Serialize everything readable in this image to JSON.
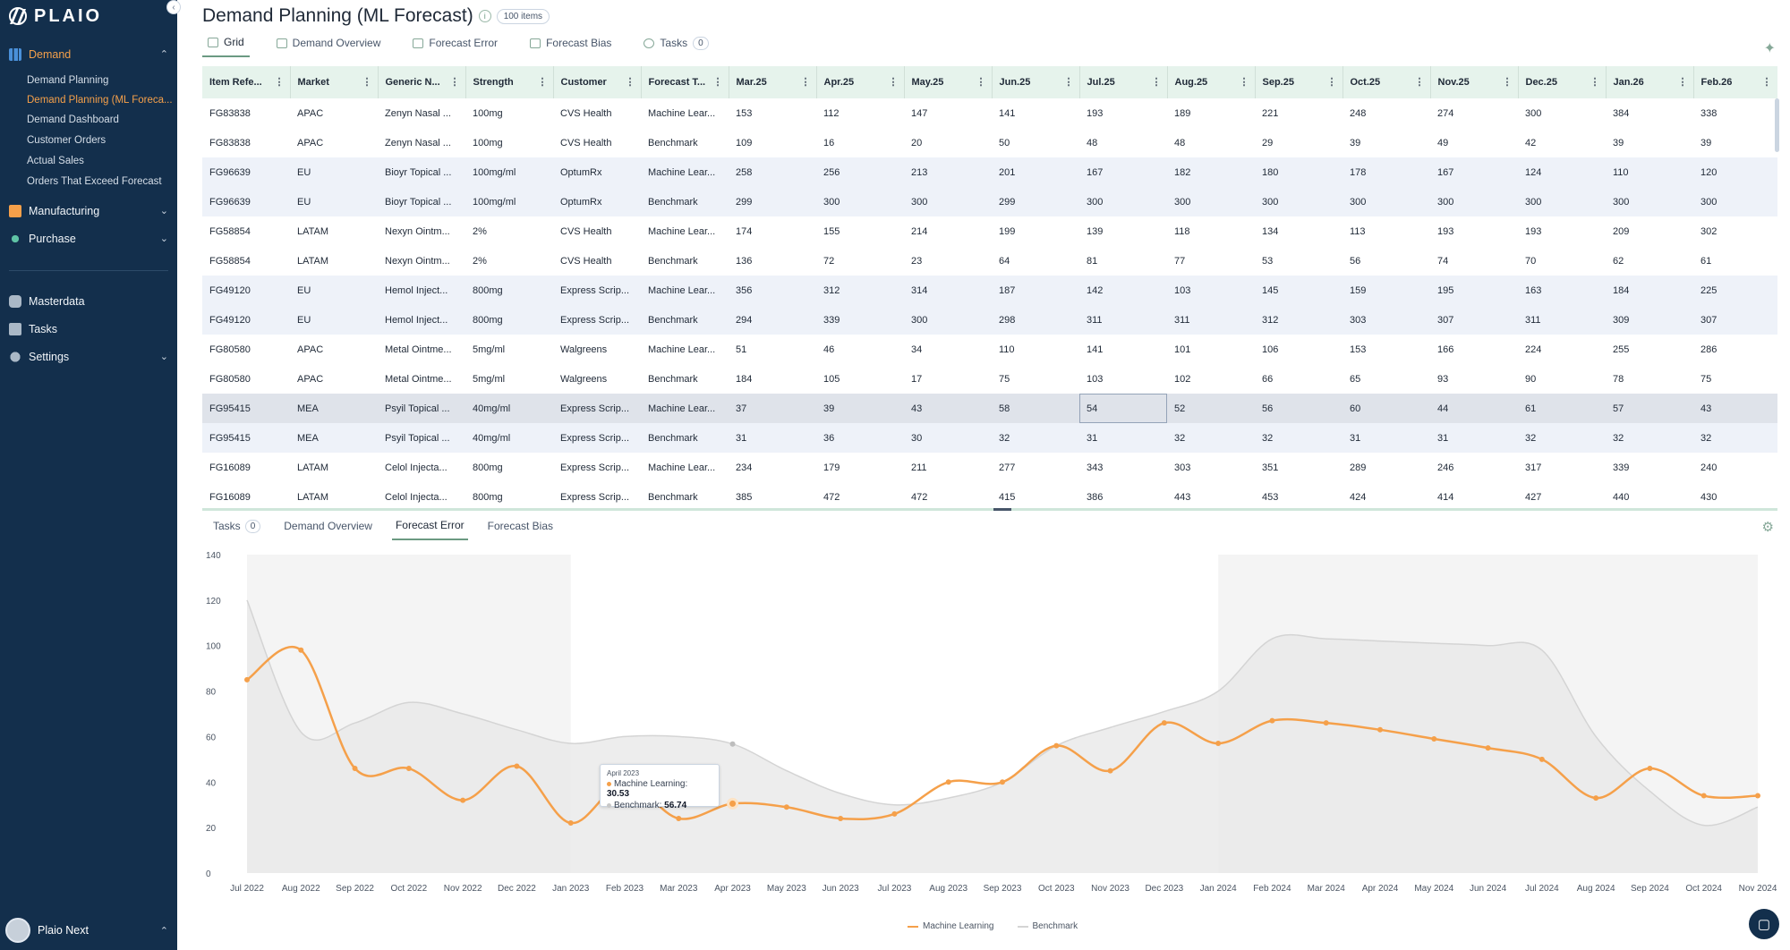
{
  "app": {
    "logo_text": "PLAIO"
  },
  "sidebar": {
    "sections": [
      {
        "label": "Demand",
        "icon": "bar-chart-icon",
        "expanded": true,
        "items": [
          "Demand Planning",
          "Demand Planning (ML Foreca...",
          "Demand Dashboard",
          "Customer Orders",
          "Actual Sales",
          "Orders That Exceed Forecast"
        ]
      },
      {
        "label": "Manufacturing",
        "icon": "factory-icon"
      },
      {
        "label": "Purchase",
        "icon": "branch-icon"
      },
      {
        "label": "Masterdata",
        "icon": "database-icon"
      },
      {
        "label": "Tasks",
        "icon": "checkbox-icon"
      },
      {
        "label": "Settings",
        "icon": "gear-icon"
      }
    ],
    "user_name": "Plaio Next"
  },
  "header": {
    "title": "Demand Planning (ML Forecast)",
    "items_badge": "100 items"
  },
  "tabs": {
    "grid": "Grid",
    "demand_overview": "Demand Overview",
    "forecast_error": "Forecast Error",
    "forecast_bias": "Forecast Bias",
    "tasks": "Tasks",
    "tasks_count": "0"
  },
  "grid": {
    "columns": [
      "Item Refe...",
      "Market",
      "Generic N...",
      "Strength",
      "Customer",
      "Forecast T...",
      "Mar.25",
      "Apr.25",
      "May.25",
      "Jun.25",
      "Jul.25",
      "Aug.25",
      "Sep.25",
      "Oct.25",
      "Nov.25",
      "Dec.25",
      "Jan.26",
      "Feb.26"
    ],
    "rows": [
      [
        "FG83838",
        "APAC",
        "Zenyn Nasal ...",
        "100mg",
        "CVS Health",
        "Machine Lear...",
        "153",
        "112",
        "147",
        "141",
        "193",
        "189",
        "221",
        "248",
        "274",
        "300",
        "384",
        "338"
      ],
      [
        "FG83838",
        "APAC",
        "Zenyn Nasal ...",
        "100mg",
        "CVS Health",
        "Benchmark",
        "109",
        "16",
        "20",
        "50",
        "48",
        "48",
        "29",
        "39",
        "49",
        "42",
        "39",
        "39"
      ],
      [
        "FG96639",
        "EU",
        "Bioyr Topical ...",
        "100mg/ml",
        "OptumRx",
        "Machine Lear...",
        "258",
        "256",
        "213",
        "201",
        "167",
        "182",
        "180",
        "178",
        "167",
        "124",
        "110",
        "120"
      ],
      [
        "FG96639",
        "EU",
        "Bioyr Topical ...",
        "100mg/ml",
        "OptumRx",
        "Benchmark",
        "299",
        "300",
        "300",
        "299",
        "300",
        "300",
        "300",
        "300",
        "300",
        "300",
        "300",
        "300"
      ],
      [
        "FG58854",
        "LATAM",
        "Nexyn Ointm...",
        "2%",
        "CVS Health",
        "Machine Lear...",
        "174",
        "155",
        "214",
        "199",
        "139",
        "118",
        "134",
        "113",
        "193",
        "193",
        "209",
        "302"
      ],
      [
        "FG58854",
        "LATAM",
        "Nexyn Ointm...",
        "2%",
        "CVS Health",
        "Benchmark",
        "136",
        "72",
        "23",
        "64",
        "81",
        "77",
        "53",
        "56",
        "74",
        "70",
        "62",
        "61"
      ],
      [
        "FG49120",
        "EU",
        "Hemol Inject...",
        "800mg",
        "Express Scrip...",
        "Machine Lear...",
        "356",
        "312",
        "314",
        "187",
        "142",
        "103",
        "145",
        "159",
        "195",
        "163",
        "184",
        "225"
      ],
      [
        "FG49120",
        "EU",
        "Hemol Inject...",
        "800mg",
        "Express Scrip...",
        "Benchmark",
        "294",
        "339",
        "300",
        "298",
        "311",
        "311",
        "312",
        "303",
        "307",
        "311",
        "309",
        "307"
      ],
      [
        "FG80580",
        "APAC",
        "Metal Ointme...",
        "5mg/ml",
        "Walgreens",
        "Machine Lear...",
        "51",
        "46",
        "34",
        "110",
        "141",
        "101",
        "106",
        "153",
        "166",
        "224",
        "255",
        "286"
      ],
      [
        "FG80580",
        "APAC",
        "Metal Ointme...",
        "5mg/ml",
        "Walgreens",
        "Benchmark",
        "184",
        "105",
        "17",
        "75",
        "103",
        "102",
        "66",
        "65",
        "93",
        "90",
        "78",
        "75"
      ],
      [
        "FG95415",
        "MEA",
        "Psyil Topical ...",
        "40mg/ml",
        "Express Scrip...",
        "Machine Lear...",
        "37",
        "39",
        "43",
        "58",
        "54",
        "52",
        "56",
        "60",
        "44",
        "61",
        "57",
        "43"
      ],
      [
        "FG95415",
        "MEA",
        "Psyil Topical ...",
        "40mg/ml",
        "Express Scrip...",
        "Benchmark",
        "31",
        "36",
        "30",
        "32",
        "31",
        "32",
        "32",
        "31",
        "31",
        "32",
        "32",
        "32"
      ],
      [
        "FG16089",
        "LATAM",
        "Celol Injecta...",
        "800mg",
        "Express Scrip...",
        "Machine Lear...",
        "234",
        "179",
        "211",
        "277",
        "343",
        "303",
        "351",
        "289",
        "246",
        "317",
        "339",
        "240"
      ],
      [
        "FG16089",
        "LATAM",
        "Celol Injecta...",
        "800mg",
        "Express Scrip...",
        "Benchmark",
        "385",
        "472",
        "472",
        "415",
        "386",
        "443",
        "453",
        "424",
        "414",
        "427",
        "440",
        "430"
      ]
    ],
    "selected_row": 10,
    "focused_col": 10
  },
  "bottom_tabs": {
    "tasks": "Tasks",
    "tasks_count": "0",
    "demand_overview": "Demand Overview",
    "forecast_error": "Forecast Error",
    "forecast_bias": "Forecast Bias"
  },
  "tooltip": {
    "date": "April 2023",
    "ml_label": "Machine Learning:",
    "ml_value": "30.53",
    "bm_label": "Benchmark:",
    "bm_value": "56.74"
  },
  "colors": {
    "accent": "#f5a04a",
    "sidebar": "#132f4c",
    "benchmark": "#d4d4d4",
    "ml": "#f5a04a"
  },
  "chart_data": {
    "type": "line",
    "x": [
      "Jul 2022",
      "Aug 2022",
      "Sep 2022",
      "Oct 2022",
      "Nov 2022",
      "Dec 2022",
      "Jan 2023",
      "Feb 2023",
      "Mar 2023",
      "Apr 2023",
      "May 2023",
      "Jun 2023",
      "Jul 2023",
      "Aug 2023",
      "Sep 2023",
      "Oct 2023",
      "Nov 2023",
      "Dec 2023",
      "Jan 2024",
      "Feb 2024",
      "Mar 2024",
      "Apr 2024",
      "May 2024",
      "Jun 2024",
      "Jul 2024",
      "Aug 2024",
      "Sep 2024",
      "Oct 2024",
      "Nov 2024"
    ],
    "yticks": [
      0,
      20,
      40,
      60,
      80,
      100,
      120,
      140
    ],
    "ylim": [
      0,
      140
    ],
    "series": [
      {
        "name": "Machine Learning",
        "color": "#f5a04a",
        "values": [
          85,
          98,
          46,
          46,
          32,
          47,
          22,
          40,
          24,
          30.53,
          29,
          24,
          26,
          40,
          40,
          56,
          45,
          66,
          57,
          67,
          66,
          63,
          59,
          55,
          50,
          33,
          46,
          34,
          34
        ]
      },
      {
        "name": "Benchmark",
        "color": "#d4d4d4",
        "values": [
          120,
          62,
          66,
          75,
          70,
          63,
          57,
          60,
          60,
          56.74,
          45,
          35,
          30,
          33,
          40,
          56,
          64,
          71,
          80,
          103,
          103,
          102,
          101,
          100,
          98,
          60,
          36,
          21,
          29
        ]
      }
    ],
    "shaded_ranges": [
      [
        "Jan 2023",
        "Jan 2024"
      ]
    ],
    "legend_position": "bottom",
    "grid": false
  }
}
